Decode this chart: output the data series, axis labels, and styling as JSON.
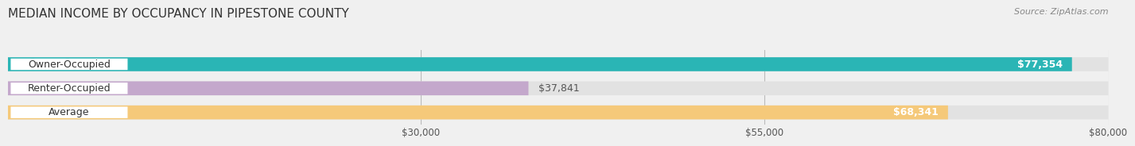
{
  "title": "MEDIAN INCOME BY OCCUPANCY IN PIPESTONE COUNTY",
  "source": "Source: ZipAtlas.com",
  "categories": [
    "Owner-Occupied",
    "Renter-Occupied",
    "Average"
  ],
  "values": [
    77354,
    37841,
    68341
  ],
  "bar_colors": [
    "#2ab5b5",
    "#c4a8cc",
    "#f5c97a"
  ],
  "value_labels": [
    "$77,354",
    "$37,841",
    "$68,341"
  ],
  "xlim": [
    0,
    80000
  ],
  "xticks": [
    30000,
    55000,
    80000
  ],
  "xtick_labels": [
    "$30,000",
    "$55,000",
    "$80,000"
  ],
  "background_color": "#f0f0f0",
  "bar_background_color": "#e2e2e2",
  "title_fontsize": 11,
  "source_fontsize": 8,
  "label_fontsize": 9,
  "value_fontsize": 9,
  "bar_height": 0.58
}
